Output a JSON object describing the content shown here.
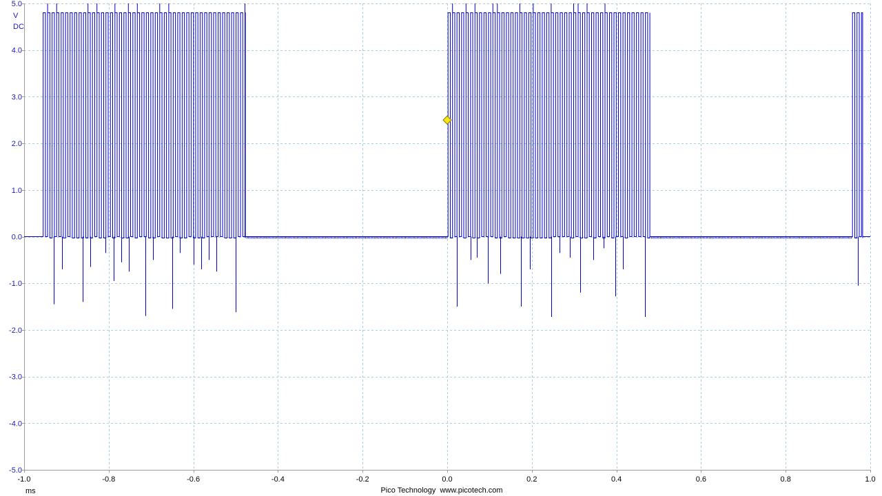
{
  "chart_data": {
    "type": "line",
    "title": "",
    "xlabel": "ms",
    "ylabel": "V",
    "coupling": "DC",
    "xlim": [
      -1.0,
      1.0
    ],
    "ylim": [
      -5.0,
      5.0
    ],
    "x_ticks": [
      "-1.0",
      "-0.8",
      "-0.6",
      "-0.4",
      "-0.2",
      "0.0",
      "0.2",
      "0.4",
      "0.6",
      "0.8",
      "1.0"
    ],
    "y_ticks": [
      "5.0",
      "4.0",
      "3.0",
      "2.0",
      "1.0",
      "0.0",
      "-1.0",
      "-2.0",
      "-3.0",
      "-4.0",
      "-5.0"
    ],
    "grid": true,
    "series": [
      {
        "color": "#0000cc",
        "signal": "burst square wave",
        "high_level": 4.8,
        "low_level": 0.0,
        "overshoot_level": 5.0,
        "bursts": [
          {
            "start": -0.955,
            "end": -0.477
          },
          {
            "start": 0.002,
            "end": 0.479
          },
          {
            "start": 0.958,
            "end": 0.982
          }
        ],
        "pulse_period": 0.0106,
        "undershoot_spikes": [
          {
            "x": -0.93,
            "y": -1.45
          },
          {
            "x": -0.91,
            "y": -0.7
          },
          {
            "x": -0.862,
            "y": -1.4
          },
          {
            "x": -0.843,
            "y": -0.65
          },
          {
            "x": -0.808,
            "y": -0.35
          },
          {
            "x": -0.788,
            "y": -0.95
          },
          {
            "x": -0.77,
            "y": -0.55
          },
          {
            "x": -0.753,
            "y": -0.75
          },
          {
            "x": -0.714,
            "y": -1.7
          },
          {
            "x": -0.695,
            "y": -0.5
          },
          {
            "x": -0.65,
            "y": -1.55
          },
          {
            "x": -0.632,
            "y": -0.35
          },
          {
            "x": -0.6,
            "y": -0.6
          },
          {
            "x": -0.582,
            "y": -0.7
          },
          {
            "x": -0.564,
            "y": -0.5
          },
          {
            "x": -0.545,
            "y": -0.75
          },
          {
            "x": -0.5,
            "y": -1.62
          },
          {
            "x": 0.023,
            "y": -1.5
          },
          {
            "x": 0.055,
            "y": -0.5
          },
          {
            "x": 0.07,
            "y": -0.45
          },
          {
            "x": 0.096,
            "y": -1.0
          },
          {
            "x": 0.126,
            "y": -0.8
          },
          {
            "x": 0.175,
            "y": -1.5
          },
          {
            "x": 0.195,
            "y": -0.7
          },
          {
            "x": 0.246,
            "y": -1.72
          },
          {
            "x": 0.266,
            "y": -0.35
          },
          {
            "x": 0.29,
            "y": -0.45
          },
          {
            "x": 0.315,
            "y": -1.2
          },
          {
            "x": 0.345,
            "y": -0.5
          },
          {
            "x": 0.37,
            "y": -0.25
          },
          {
            "x": 0.397,
            "y": -1.28
          },
          {
            "x": 0.416,
            "y": -0.7
          },
          {
            "x": 0.467,
            "y": -1.72
          },
          {
            "x": 0.971,
            "y": -1.05
          }
        ]
      }
    ]
  },
  "footer": {
    "brand": "Pico Technology  www.picotech.com"
  },
  "trigger": {
    "x": 0.0,
    "y": 2.5,
    "color": "#f5e61a"
  }
}
